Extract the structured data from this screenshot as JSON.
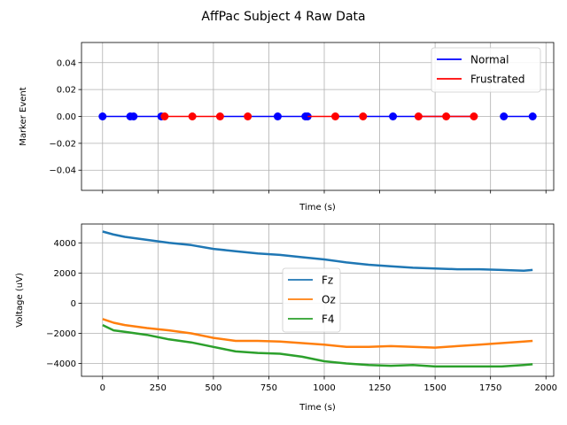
{
  "figure": {
    "title": "AffPac Subject 4 Raw Data"
  },
  "chart_data": [
    {
      "type": "line",
      "xlabel": "Time (s)",
      "ylabel": "Marker Event",
      "xlim": [
        -95,
        2035
      ],
      "ylim": [
        -0.055,
        0.055
      ],
      "yticks": [
        -0.04,
        -0.02,
        0.0,
        0.02,
        0.04
      ],
      "ytick_labels": [
        "−0.04",
        "−0.02",
        "0.00",
        "0.02",
        "0.04"
      ],
      "xticks": [
        0,
        250,
        500,
        750,
        1000,
        1250,
        1500,
        1750,
        2000
      ],
      "grid": true,
      "legend_position": "upper right",
      "series": [
        {
          "name": "Normal",
          "color": "#0000ff",
          "segments": [
            [
              0,
              270
            ],
            [
              535,
              925
            ],
            [
              1060,
              1685
            ],
            [
              1810,
              1940
            ]
          ],
          "markers": [
            0,
            125,
            140,
            265,
            790,
            915,
            925,
            1310,
            1810,
            1940
          ]
        },
        {
          "name": "Frustrated",
          "color": "#ff0000",
          "segments": [
            [
              270,
              535
            ],
            [
              925,
              1060
            ],
            [
              1430,
              1685
            ]
          ],
          "markers": [
            280,
            405,
            530,
            655,
            1050,
            1175,
            1425,
            1550,
            1675
          ]
        }
      ]
    },
    {
      "type": "line",
      "xlabel": "Time (s)",
      "ylabel": "Voltage (uV)",
      "xlim": [
        -95,
        2035
      ],
      "ylim": [
        -4850,
        5250
      ],
      "xticks": [
        0,
        250,
        500,
        750,
        1000,
        1250,
        1500,
        1750,
        2000
      ],
      "xtick_labels": [
        "0",
        "250",
        "500",
        "750",
        "1000",
        "1250",
        "1500",
        "1750",
        "2000"
      ],
      "yticks": [
        -4000,
        -2000,
        0,
        2000,
        4000
      ],
      "ytick_labels": [
        "−4000",
        "−2000",
        "0",
        "2000",
        "4000"
      ],
      "grid": true,
      "legend_position": "center",
      "x": [
        0,
        50,
        100,
        200,
        300,
        400,
        500,
        600,
        700,
        800,
        900,
        1000,
        1100,
        1200,
        1300,
        1400,
        1500,
        1600,
        1700,
        1800,
        1900,
        1940
      ],
      "series": [
        {
          "name": "Fz",
          "color": "#1f77b4",
          "values": [
            4750,
            4550,
            4400,
            4200,
            4000,
            3850,
            3600,
            3450,
            3300,
            3200,
            3050,
            2900,
            2700,
            2550,
            2450,
            2350,
            2300,
            2250,
            2250,
            2200,
            2150,
            2200
          ]
        },
        {
          "name": "Oz",
          "color": "#ff7f0e",
          "values": [
            -1050,
            -1300,
            -1450,
            -1650,
            -1800,
            -2000,
            -2300,
            -2500,
            -2500,
            -2550,
            -2650,
            -2750,
            -2900,
            -2900,
            -2850,
            -2900,
            -2950,
            -2850,
            -2750,
            -2650,
            -2550,
            -2500
          ]
        },
        {
          "name": "F4",
          "color": "#2ca02c",
          "values": [
            -1450,
            -1800,
            -1900,
            -2100,
            -2400,
            -2600,
            -2900,
            -3200,
            -3300,
            -3350,
            -3550,
            -3850,
            -4000,
            -4100,
            -4150,
            -4100,
            -4200,
            -4200,
            -4200,
            -4200,
            -4100,
            -4050
          ]
        }
      ]
    }
  ]
}
